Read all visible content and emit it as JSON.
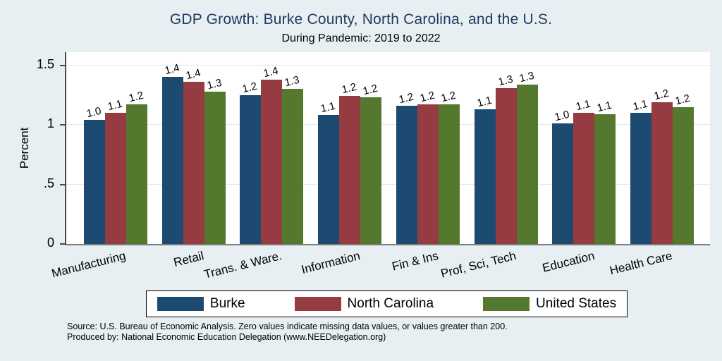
{
  "chart_data": {
    "type": "bar",
    "title": "GDP Growth: Burke County, North Carolina, and the U.S.",
    "subtitle": "During Pandemic: 2019 to 2022",
    "ylabel": "Percent",
    "ylim": [
      0,
      1.61
    ],
    "grid": true,
    "legend_position": "bottom",
    "yticks": [
      {
        "value": 0,
        "label": "0"
      },
      {
        "value": 0.5,
        "label": ".5"
      },
      {
        "value": 1,
        "label": "1"
      },
      {
        "value": 1.5,
        "label": "1.5"
      }
    ],
    "categories": [
      "Manufacturing",
      "Retail",
      "Trans. & Ware.",
      "Information",
      "Fin & Ins",
      "Prof, Sci, Tech",
      "Education",
      "Health Care"
    ],
    "series": [
      {
        "name": "Burke",
        "color": "#1d4a70",
        "values": [
          1.04,
          1.4,
          1.25,
          1.08,
          1.16,
          1.13,
          1.01,
          1.1
        ],
        "labels": [
          "1.0",
          "1.4",
          "1.2",
          "1.1",
          "1.2",
          "1.1",
          "1.0",
          "1.1"
        ]
      },
      {
        "name": "North Carolina",
        "color": "#963b42",
        "values": [
          1.1,
          1.36,
          1.38,
          1.24,
          1.17,
          1.31,
          1.1,
          1.19
        ],
        "labels": [
          "1.1",
          "1.4",
          "1.4",
          "1.2",
          "1.2",
          "1.3",
          "1.1",
          "1.2"
        ]
      },
      {
        "name": "United States",
        "color": "#54782e",
        "values": [
          1.17,
          1.28,
          1.3,
          1.23,
          1.17,
          1.34,
          1.09,
          1.15
        ],
        "labels": [
          "1.2",
          "1.3",
          "1.3",
          "1.2",
          "1.2",
          "1.3",
          "1.1",
          "1.2"
        ]
      }
    ]
  },
  "colors": {
    "background": "#e8eff2",
    "title": "#1f3a60",
    "gridline": "#dfe9f1"
  },
  "footer": {
    "source_line1": "Source: U.S. Bureau of Economic Analysis. Zero values indicate missing data values, or values greater than 200.",
    "source_line2": "Produced by: National Economic Education Delegation (www.NEEDelegation.org)"
  }
}
